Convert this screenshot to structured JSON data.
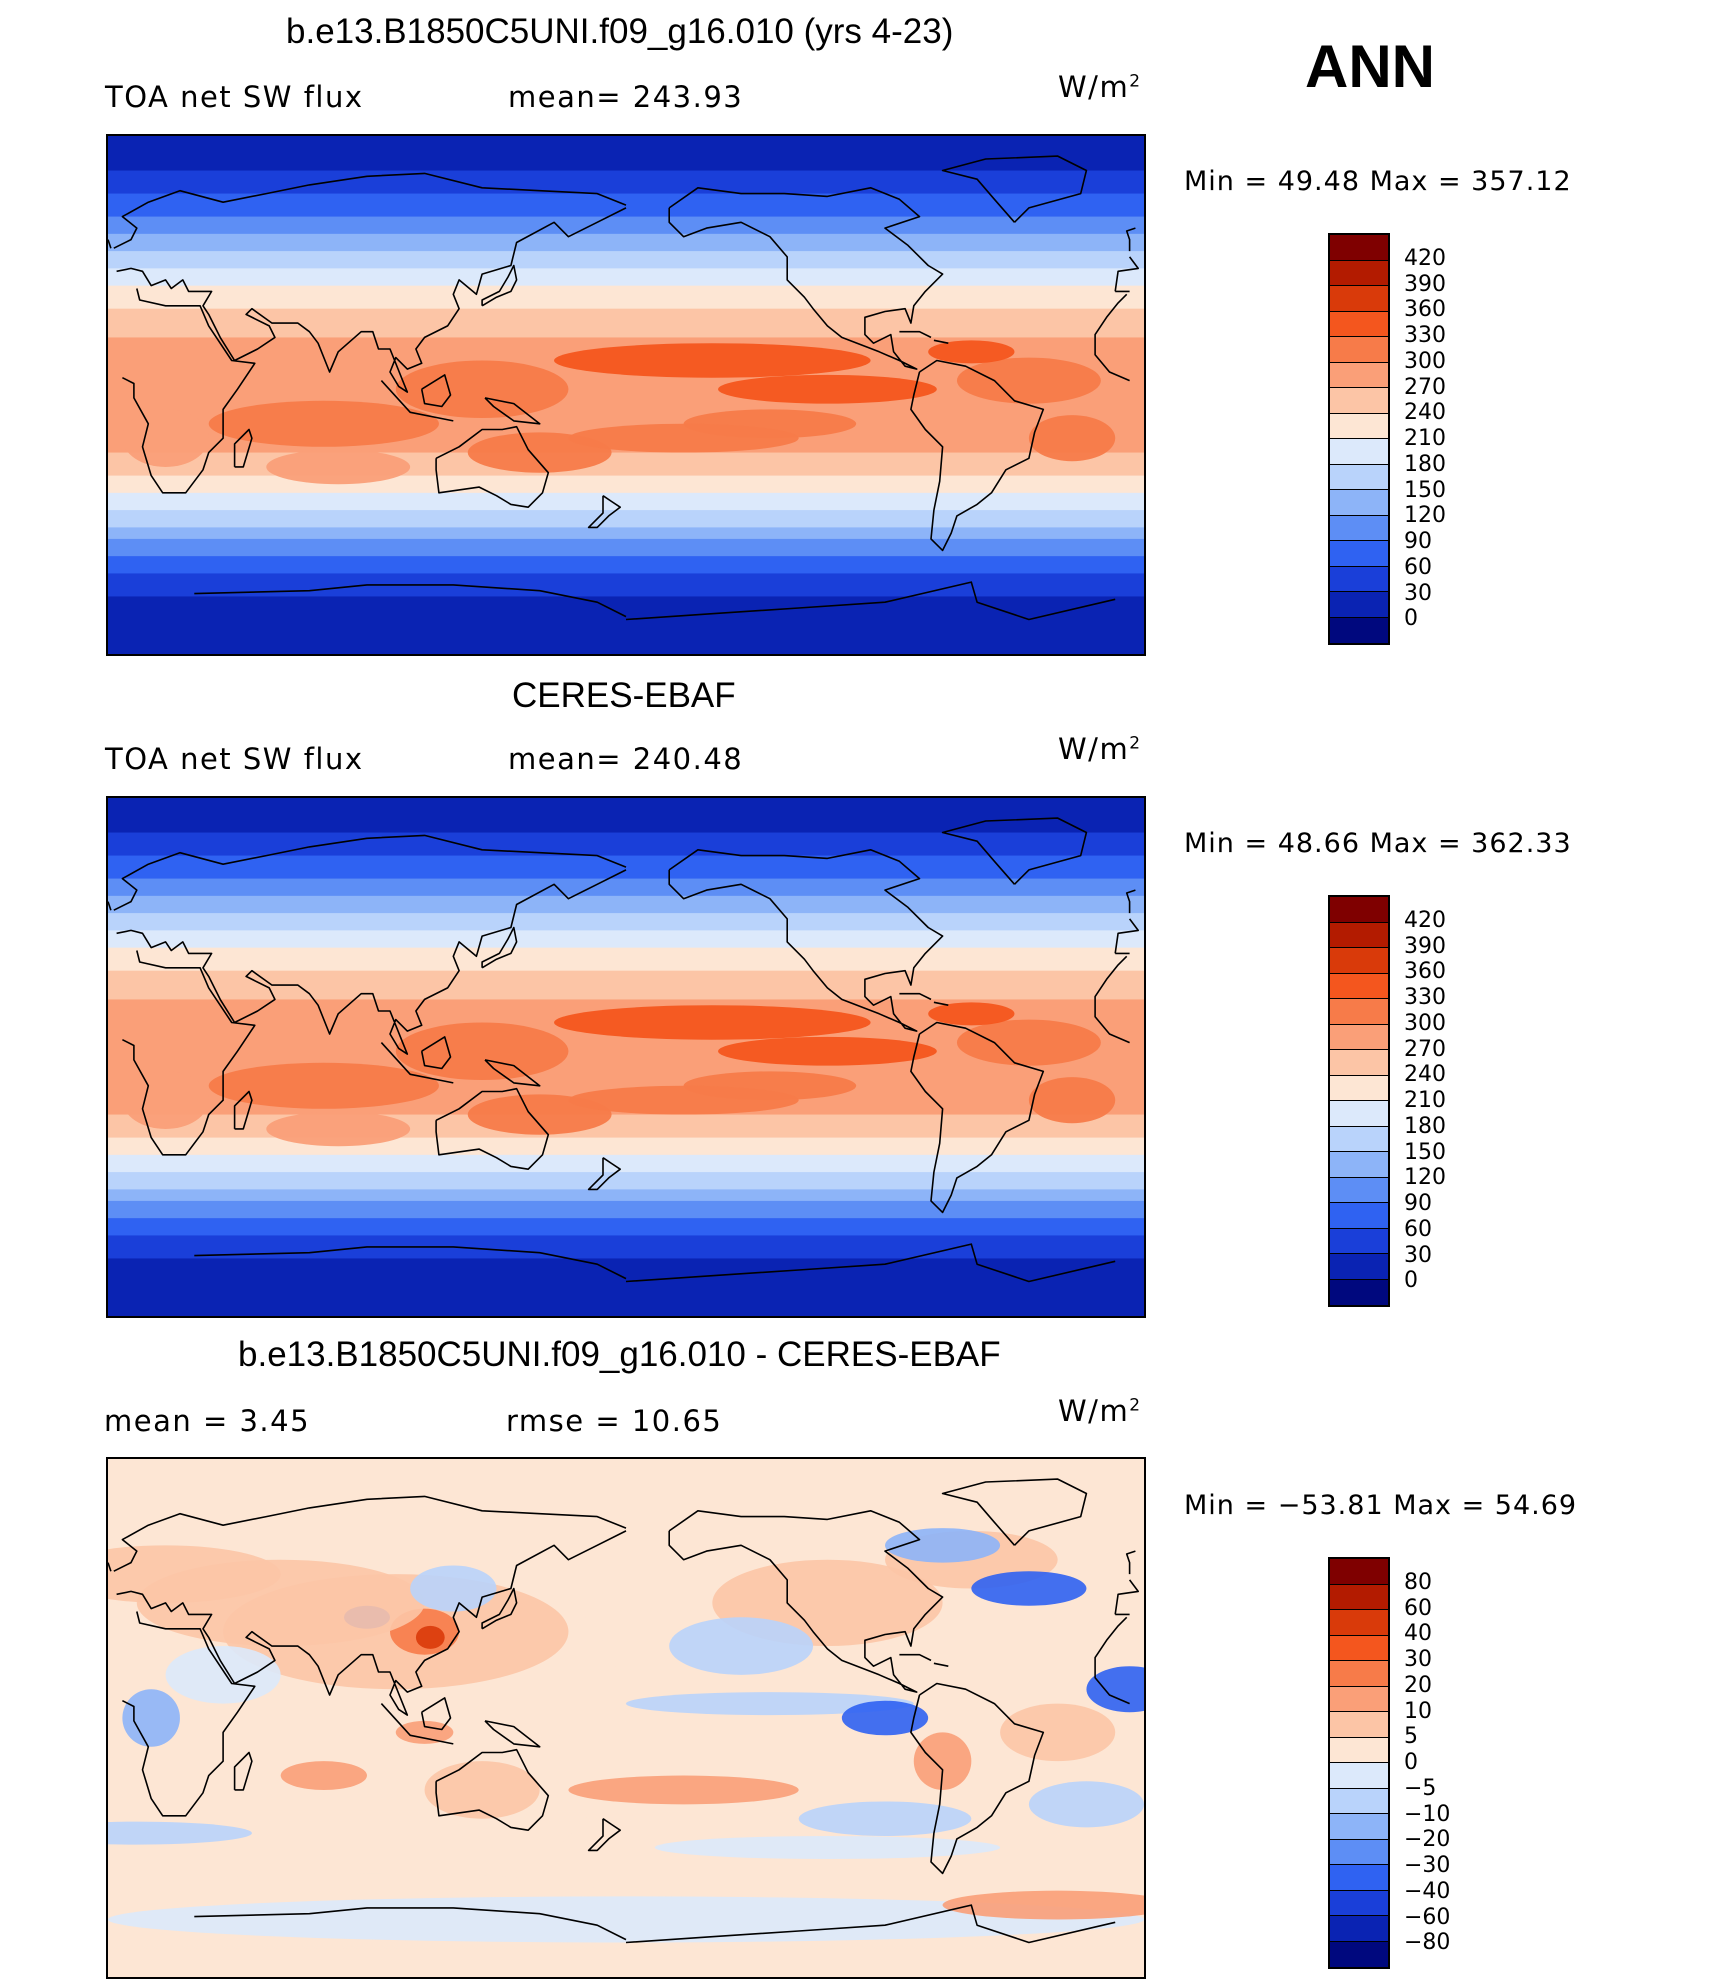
{
  "season": "ANN",
  "panels": [
    {
      "title": "b.e13.B1850C5UNI.f09_g16.010 (yrs 4-23)",
      "left_label": "TOA net SW flux",
      "stat_text": "mean= 243.93",
      "units": "W/m",
      "units_sup": "2",
      "minmax": "Min =   49.48 Max = 357.12",
      "colorbar_labels": [
        "420",
        "390",
        "360",
        "330",
        "300",
        "270",
        "240",
        "210",
        "180",
        "150",
        "120",
        "90",
        "60",
        "30",
        "0"
      ]
    },
    {
      "title": "CERES-EBAF",
      "left_label": "TOA net SW flux",
      "stat_text": "mean= 240.48",
      "units": "W/m",
      "units_sup": "2",
      "minmax": "Min =   48.66 Max = 362.33",
      "colorbar_labels": [
        "420",
        "390",
        "360",
        "330",
        "300",
        "270",
        "240",
        "210",
        "180",
        "150",
        "120",
        "90",
        "60",
        "30",
        "0"
      ]
    },
    {
      "title": "b.e13.B1850C5UNI.f09_g16.010 - CERES-EBAF",
      "left_label": "mean =    3.45",
      "stat_text": "rmse =   10.65",
      "units": "W/m",
      "units_sup": "2",
      "minmax": "Min = −53.81 Max =  54.69",
      "colorbar_labels": [
        "80",
        "60",
        "40",
        "30",
        "20",
        "10",
        "5",
        "0",
        "−5",
        "−10",
        "−20",
        "−30",
        "−40",
        "−60",
        "−80"
      ]
    }
  ],
  "colors": {
    "abs_scale_top_to_bottom": [
      "#7f0000",
      "#b31b00",
      "#d93a0a",
      "#f4561e",
      "#f77b49",
      "#fa9f78",
      "#fcc5a6",
      "#fde6d4",
      "#dce9fb",
      "#b9d3fb",
      "#8db4f8",
      "#5d8ef5",
      "#2f62f2",
      "#1a3fd9",
      "#0a23b3",
      "#00087e"
    ],
    "diff_scale_top_to_bottom": [
      "#7f0000",
      "#b31b00",
      "#d93a0a",
      "#f4561e",
      "#f77b49",
      "#fa9f78",
      "#fcc5a6",
      "#fde6d4",
      "#dce9fb",
      "#b9d3fb",
      "#8db4f8",
      "#5d8ef5",
      "#2f62f2",
      "#1a3fd9",
      "#0a23b3",
      "#00087e"
    ],
    "coastline": "#000000"
  }
}
